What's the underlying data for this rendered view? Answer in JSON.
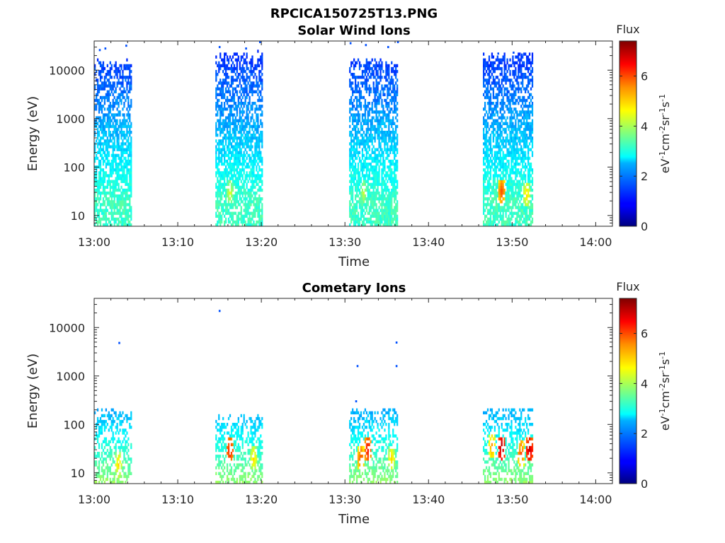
{
  "figure": {
    "title": "RPCICA150725T13.PNG"
  },
  "colorbar": {
    "title": "Flux",
    "label": "eV-1cm-2sr-1s-1",
    "ticks": [
      0,
      2,
      4,
      6
    ],
    "range": [
      0,
      7.4
    ],
    "colormap": "jet"
  },
  "chart_data": [
    {
      "type": "heatmap",
      "title": "Solar Wind Ions",
      "xlabel": "Time",
      "ylabel": "Energy (eV)",
      "y_scale": "log",
      "xlim": [
        "13:00",
        "14:02"
      ],
      "ylim": [
        6,
        40000
      ],
      "x_ticks": [
        "13:00",
        "13:10",
        "13:20",
        "13:30",
        "13:40",
        "13:50",
        "14:00"
      ],
      "y_ticks": [
        10,
        100,
        1000,
        10000
      ],
      "value_label": "log10 Flux",
      "blocks": [
        {
          "start": "13:00",
          "end": "13:04:30",
          "max_energy": 14000
        },
        {
          "start": "13:14:30",
          "end": "13:20:10",
          "max_energy": 20000
        },
        {
          "start": "13:30:30",
          "end": "13:36:20",
          "max_energy": 15000
        },
        {
          "start": "13:46:30",
          "end": "13:52:30",
          "max_energy": 20000
        }
      ],
      "hotspots": [
        {
          "time": "13:16:10",
          "energy": 30,
          "value": 4.5
        },
        {
          "time": "13:32:10",
          "energy": 30,
          "value": 4.3
        },
        {
          "time": "13:48:40",
          "energy": 32,
          "value": 6.0
        },
        {
          "time": "13:51:40",
          "energy": 28,
          "value": 5.0
        }
      ],
      "isolated_points": [
        {
          "time": "13:00:40",
          "energy": 26000
        },
        {
          "time": "13:01:20",
          "energy": 28000
        },
        {
          "time": "13:03:50",
          "energy": 32000
        },
        {
          "time": "13:15:00",
          "energy": 30000
        },
        {
          "time": "13:18:10",
          "energy": 28000
        },
        {
          "time": "13:19:50",
          "energy": 38000
        },
        {
          "time": "13:30:40",
          "energy": 36000
        },
        {
          "time": "13:32:30",
          "energy": 33000
        },
        {
          "time": "13:35:10",
          "energy": 30000
        },
        {
          "time": "13:36:20",
          "energy": 38000
        },
        {
          "time": "13:48:20",
          "energy": 22000
        },
        {
          "time": "13:50:10",
          "energy": 23000
        },
        {
          "time": "13:51:10",
          "energy": 21000
        }
      ]
    },
    {
      "type": "heatmap",
      "title": "Cometary Ions",
      "xlabel": "Time",
      "ylabel": "Energy (eV)",
      "y_scale": "log",
      "xlim": [
        "13:00",
        "14:02"
      ],
      "ylim": [
        6,
        40000
      ],
      "x_ticks": [
        "13:00",
        "13:10",
        "13:20",
        "13:30",
        "13:40",
        "13:50",
        "14:00"
      ],
      "y_ticks": [
        10,
        100,
        1000,
        10000
      ],
      "value_label": "log10 Flux",
      "blocks": [
        {
          "start": "13:00",
          "end": "13:04:30",
          "max_energy": 180
        },
        {
          "start": "13:14:30",
          "end": "13:20:10",
          "max_energy": 130
        },
        {
          "start": "13:30:30",
          "end": "13:36:20",
          "max_energy": 200
        },
        {
          "start": "13:46:30",
          "end": "13:52:30",
          "max_energy": 260
        }
      ],
      "hotspots": [
        {
          "time": "13:02:50",
          "energy": 15,
          "value": 5.0
        },
        {
          "time": "13:16:10",
          "energy": 30,
          "value": 6.5
        },
        {
          "time": "13:19:00",
          "energy": 20,
          "value": 5.0
        },
        {
          "time": "13:31:50",
          "energy": 20,
          "value": 6.0
        },
        {
          "time": "13:32:40",
          "energy": 32,
          "value": 6.5
        },
        {
          "time": "13:35:30",
          "energy": 20,
          "value": 5.0
        },
        {
          "time": "13:48:40",
          "energy": 32,
          "value": 7.2
        },
        {
          "time": "13:51:00",
          "energy": 25,
          "value": 6.0
        },
        {
          "time": "13:52:00",
          "energy": 30,
          "value": 7.0
        },
        {
          "time": "13:47:30",
          "energy": 35,
          "value": 5.5
        }
      ],
      "isolated_points": [
        {
          "time": "13:03:00",
          "energy": 4800
        },
        {
          "time": "13:15:00",
          "energy": 22000
        },
        {
          "time": "13:31:30",
          "energy": 1600
        },
        {
          "time": "13:36:10",
          "energy": 4900
        },
        {
          "time": "13:36:10",
          "energy": 1600
        },
        {
          "time": "13:31:20",
          "energy": 300
        }
      ]
    }
  ]
}
